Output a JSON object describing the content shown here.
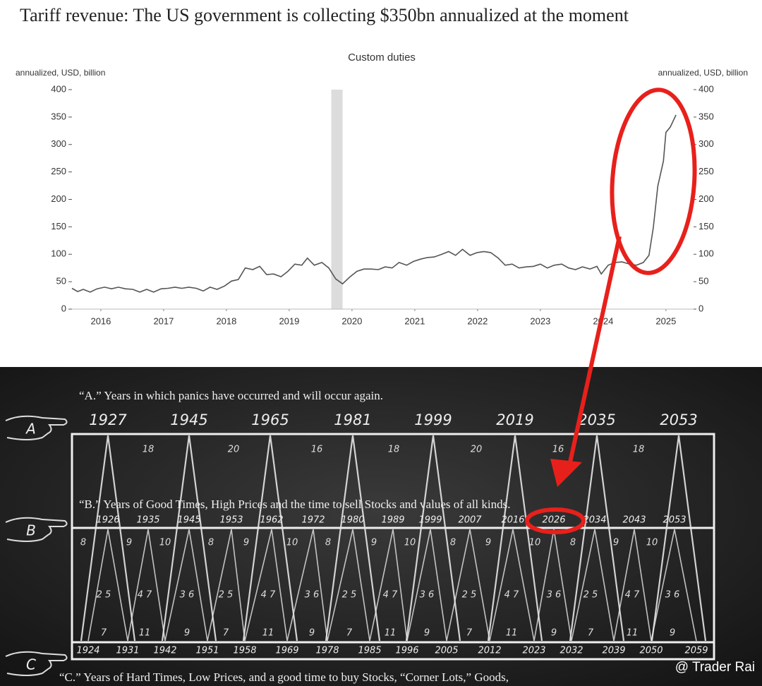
{
  "chart_data": {
    "type": "line",
    "title": "Tariff revenue: The US government is collecting $350bn annualized at the moment",
    "subtitle": "Custom duties",
    "y_label": "annualized, USD, billion",
    "y2_label": "annualized, USD, billion",
    "color": "#555555",
    "x": [
      2015.54,
      2015.63,
      2015.72,
      2015.83,
      2015.94,
      2016.06,
      2016.17,
      2016.28,
      2016.39,
      2016.51,
      2016.62,
      2016.73,
      2016.84,
      2016.96,
      2017.07,
      2017.18,
      2017.29,
      2017.4,
      2017.52,
      2017.63,
      2017.74,
      2017.85,
      2017.97,
      2018.08,
      2018.19,
      2018.3,
      2018.42,
      2018.53,
      2018.64,
      2018.75,
      2018.87,
      2018.98,
      2019.09,
      2019.2,
      2019.29,
      2019.4,
      2019.52,
      2019.63,
      2019.74,
      2019.85,
      2019.97,
      2020.08,
      2020.19,
      2020.3,
      2020.42,
      2020.53,
      2020.64,
      2020.75,
      2020.87,
      2020.98,
      2021.09,
      2021.2,
      2021.31,
      2021.43,
      2021.54,
      2021.65,
      2021.76,
      2021.88,
      2021.99,
      2022.1,
      2022.21,
      2022.33,
      2022.44,
      2022.55,
      2022.66,
      2022.78,
      2022.89,
      2023.0,
      2023.11,
      2023.22,
      2023.34,
      2023.45,
      2023.56,
      2023.67,
      2023.79,
      2023.9,
      2023.97,
      2024.08,
      2024.19,
      2024.3,
      2024.42,
      2024.53,
      2024.64,
      2024.73,
      2024.8,
      2024.87,
      2024.96,
      2025.0,
      2025.07,
      2025.16
    ],
    "values": [
      38,
      32,
      36,
      31,
      37,
      40,
      37,
      40,
      37,
      36,
      31,
      36,
      31,
      37,
      38,
      40,
      38,
      40,
      38,
      33,
      40,
      36,
      42,
      51,
      54,
      75,
      72,
      78,
      63,
      64,
      59,
      69,
      82,
      80,
      93,
      80,
      85,
      75,
      55,
      46,
      59,
      69,
      73,
      73,
      72,
      77,
      75,
      85,
      80,
      87,
      91,
      94,
      95,
      100,
      105,
      98,
      109,
      98,
      103,
      105,
      103,
      93,
      80,
      82,
      75,
      77,
      78,
      82,
      75,
      80,
      82,
      75,
      72,
      77,
      73,
      78,
      64,
      80,
      85,
      86,
      82,
      80,
      85,
      98,
      149,
      224,
      270,
      322,
      332,
      354
    ],
    "shaded_x": [
      2019.67,
      2019.85
    ],
    "xlim": [
      2015.54,
      2025.44
    ],
    "xticks": [
      2016,
      2017,
      2018,
      2019,
      2020,
      2021,
      2022,
      2023,
      2024,
      2025
    ],
    "ylim": [
      0,
      400
    ],
    "yticks": [
      0,
      50,
      100,
      150,
      200,
      250,
      300,
      350,
      400
    ],
    "y2lim": [
      0,
      400
    ],
    "y2ticks": [
      0,
      50,
      100,
      150,
      200,
      250,
      300,
      350,
      400
    ],
    "grid": false
  },
  "cycle_diagram": {
    "a_caption": "“A.” Years in which panics have occurred and will occur again.",
    "a_years": [
      "1927",
      "1945",
      "1965",
      "1981",
      "1999",
      "2019",
      "2035",
      "2053"
    ],
    "a_intervals": [
      "18",
      "20",
      "16",
      "18",
      "20",
      "16",
      "18"
    ],
    "b_caption": "“B.” Years of Good Times, High Prices and the time to sell Stocks and values of all kinds.",
    "b_years": [
      "1926",
      "1935",
      "1945",
      "1953",
      "1962",
      "1972",
      "1980",
      "1989",
      "1999",
      "2007",
      "2016",
      "2026",
      "2034",
      "2043",
      "2053"
    ],
    "b_intervals": [
      "8",
      "9",
      "10",
      "8",
      "9",
      "10",
      "8",
      "9",
      "10",
      "8",
      "9",
      "10",
      "8",
      "9",
      "10"
    ],
    "mid_labels": [
      "2 5",
      "4 7",
      "3 6",
      "2 5",
      "4 7",
      "3 6",
      "2 5",
      "4 7",
      "3 6",
      "2 5",
      "4 7",
      "3 6",
      "2 5",
      "4 7",
      "3 6"
    ],
    "low_labels": [
      "7",
      "11",
      "9",
      "7",
      "11",
      "9",
      "7",
      "11",
      "9",
      "7",
      "11",
      "9",
      "7",
      "11",
      "9"
    ],
    "c_years": [
      "1924",
      "1931",
      "1942",
      "1951",
      "1958",
      "1969",
      "1978",
      "1985",
      "1996",
      "2005",
      "2012",
      "2023",
      "2032",
      "2039",
      "2050",
      "2059"
    ],
    "c_caption": "“C.”  Years of Hard Times, Low Prices, and a good time to buy Stocks, “Corner Lots,” Goods,",
    "hand_labels": [
      "A",
      "B",
      "C"
    ]
  },
  "watermark": "@ Trader Rai"
}
